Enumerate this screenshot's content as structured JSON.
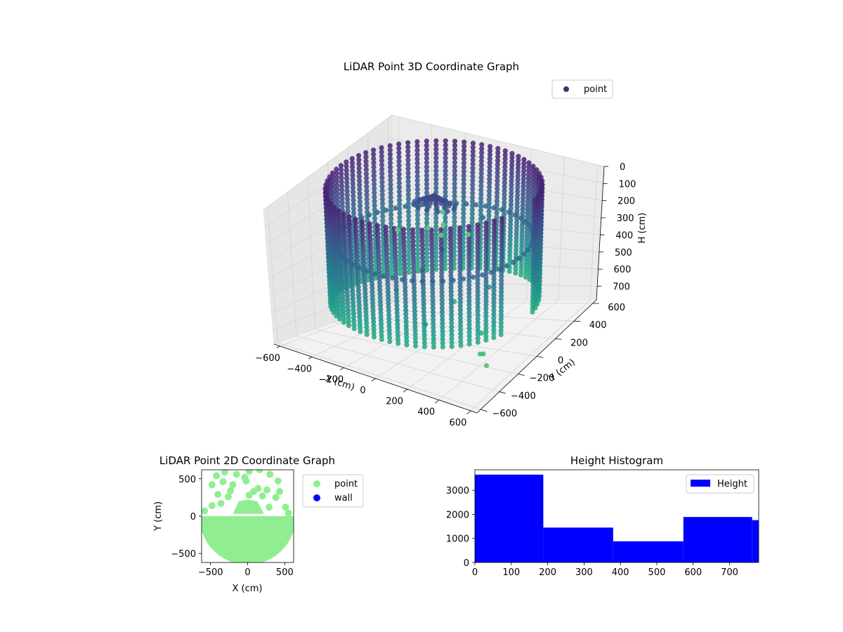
{
  "chart_data": [
    {
      "id": "scatter3d",
      "type": "scatter",
      "projection": "3d",
      "title": "LiDAR Point 3D Coordinate Graph",
      "xlabel": "X (cm)",
      "ylabel": "Y (cm)",
      "zlabel": "H (cm)",
      "xlim": [
        -640,
        640
      ],
      "ylim": [
        -640,
        640
      ],
      "zlim": [
        0,
        780
      ],
      "z_inverted": true,
      "xticks": [
        -600,
        -400,
        -200,
        0,
        200,
        400,
        600
      ],
      "yticks": [
        -600,
        -400,
        -200,
        0,
        200,
        400,
        600
      ],
      "zticks": [
        0,
        100,
        200,
        300,
        400,
        500,
        600,
        700
      ],
      "legend": [
        "point"
      ],
      "legend_position": "upper-right",
      "colormap": "viridis",
      "point_color": "#4b2a7b",
      "grid": true,
      "structures": {
        "wall_radius": 560,
        "wall_height_range": [
          0,
          600
        ],
        "wall_gap_angle_range_deg": [
          -20,
          10
        ],
        "inner_ring_radius": 520,
        "inner_ring_height": 280,
        "center_blob_center": [
          -120,
          200
        ],
        "center_blob_height": 140
      },
      "scattered_points": [
        [
          -100,
          250,
          420
        ],
        [
          -200,
          200,
          520
        ],
        [
          -300,
          100,
          600
        ],
        [
          0,
          500,
          330
        ],
        [
          300,
          350,
          450
        ],
        [
          250,
          150,
          530
        ],
        [
          350,
          -100,
          660
        ],
        [
          400,
          -200,
          720
        ],
        [
          450,
          -250,
          690
        ],
        [
          500,
          -300,
          720
        ],
        [
          150,
          -350,
          560
        ],
        [
          50,
          120,
          620
        ]
      ],
      "floor_points": [
        [
          120,
          -560,
          0
        ],
        [
          250,
          -470,
          0
        ],
        [
          360,
          -520,
          0
        ],
        [
          480,
          -450,
          0
        ],
        [
          300,
          -400,
          0
        ],
        [
          210,
          -260,
          0
        ]
      ]
    },
    {
      "id": "scatter2d",
      "type": "scatter",
      "title": "LiDAR Point 2D Coordinate Graph",
      "xlabel": "X (cm)",
      "ylabel": "Y (cm)",
      "xlim": [
        -620,
        620
      ],
      "ylim": [
        -620,
        620
      ],
      "xticks": [
        -500,
        0,
        500
      ],
      "yticks": [
        -500,
        0,
        500
      ],
      "legend": [
        "point",
        "wall"
      ],
      "legend_colors": [
        "#90ee90",
        "#0000ff"
      ],
      "legend_position": "outside-right",
      "circle_radius": 650,
      "solid_region_y_max": 30,
      "dome": [
        [
          -200,
          30
        ],
        [
          -120,
          200
        ],
        [
          0,
          220
        ],
        [
          130,
          200
        ],
        [
          220,
          30
        ]
      ],
      "upper_points": [
        [
          -420,
          540
        ],
        [
          -310,
          590
        ],
        [
          -150,
          560
        ],
        [
          20,
          600
        ],
        [
          160,
          620
        ],
        [
          300,
          560
        ],
        [
          -480,
          420
        ],
        [
          -330,
          460
        ],
        [
          -200,
          420
        ],
        [
          -20,
          470
        ],
        [
          140,
          370
        ],
        [
          260,
          350
        ],
        [
          430,
          330
        ],
        [
          -400,
          290
        ],
        [
          -260,
          260
        ],
        [
          200,
          270
        ],
        [
          380,
          250
        ],
        [
          -480,
          140
        ],
        [
          -360,
          170
        ],
        [
          80,
          330
        ],
        [
          510,
          120
        ],
        [
          290,
          120
        ],
        [
          -40,
          520
        ],
        [
          410,
          470
        ],
        [
          -230,
          340
        ],
        [
          20,
          280
        ],
        [
          550,
          40
        ],
        [
          -580,
          70
        ]
      ]
    },
    {
      "id": "histogram",
      "type": "bar",
      "subtype": "histogram",
      "title": "Height Histogram",
      "legend": [
        "Height"
      ],
      "legend_position": "top-right",
      "color": "#0000ff",
      "xlim": [
        0,
        780
      ],
      "ylim": [
        0,
        3850
      ],
      "xticks": [
        0,
        100,
        200,
        300,
        400,
        500,
        600,
        700
      ],
      "yticks": [
        0,
        1000,
        2000,
        3000
      ],
      "bins": [
        {
          "start": 0,
          "end": 188,
          "count": 3650
        },
        {
          "start": 188,
          "end": 380,
          "count": 1450
        },
        {
          "start": 380,
          "end": 573,
          "count": 880
        },
        {
          "start": 573,
          "end": 762,
          "count": 1890
        },
        {
          "start": 762,
          "end": 780,
          "count": 1760
        }
      ]
    }
  ]
}
